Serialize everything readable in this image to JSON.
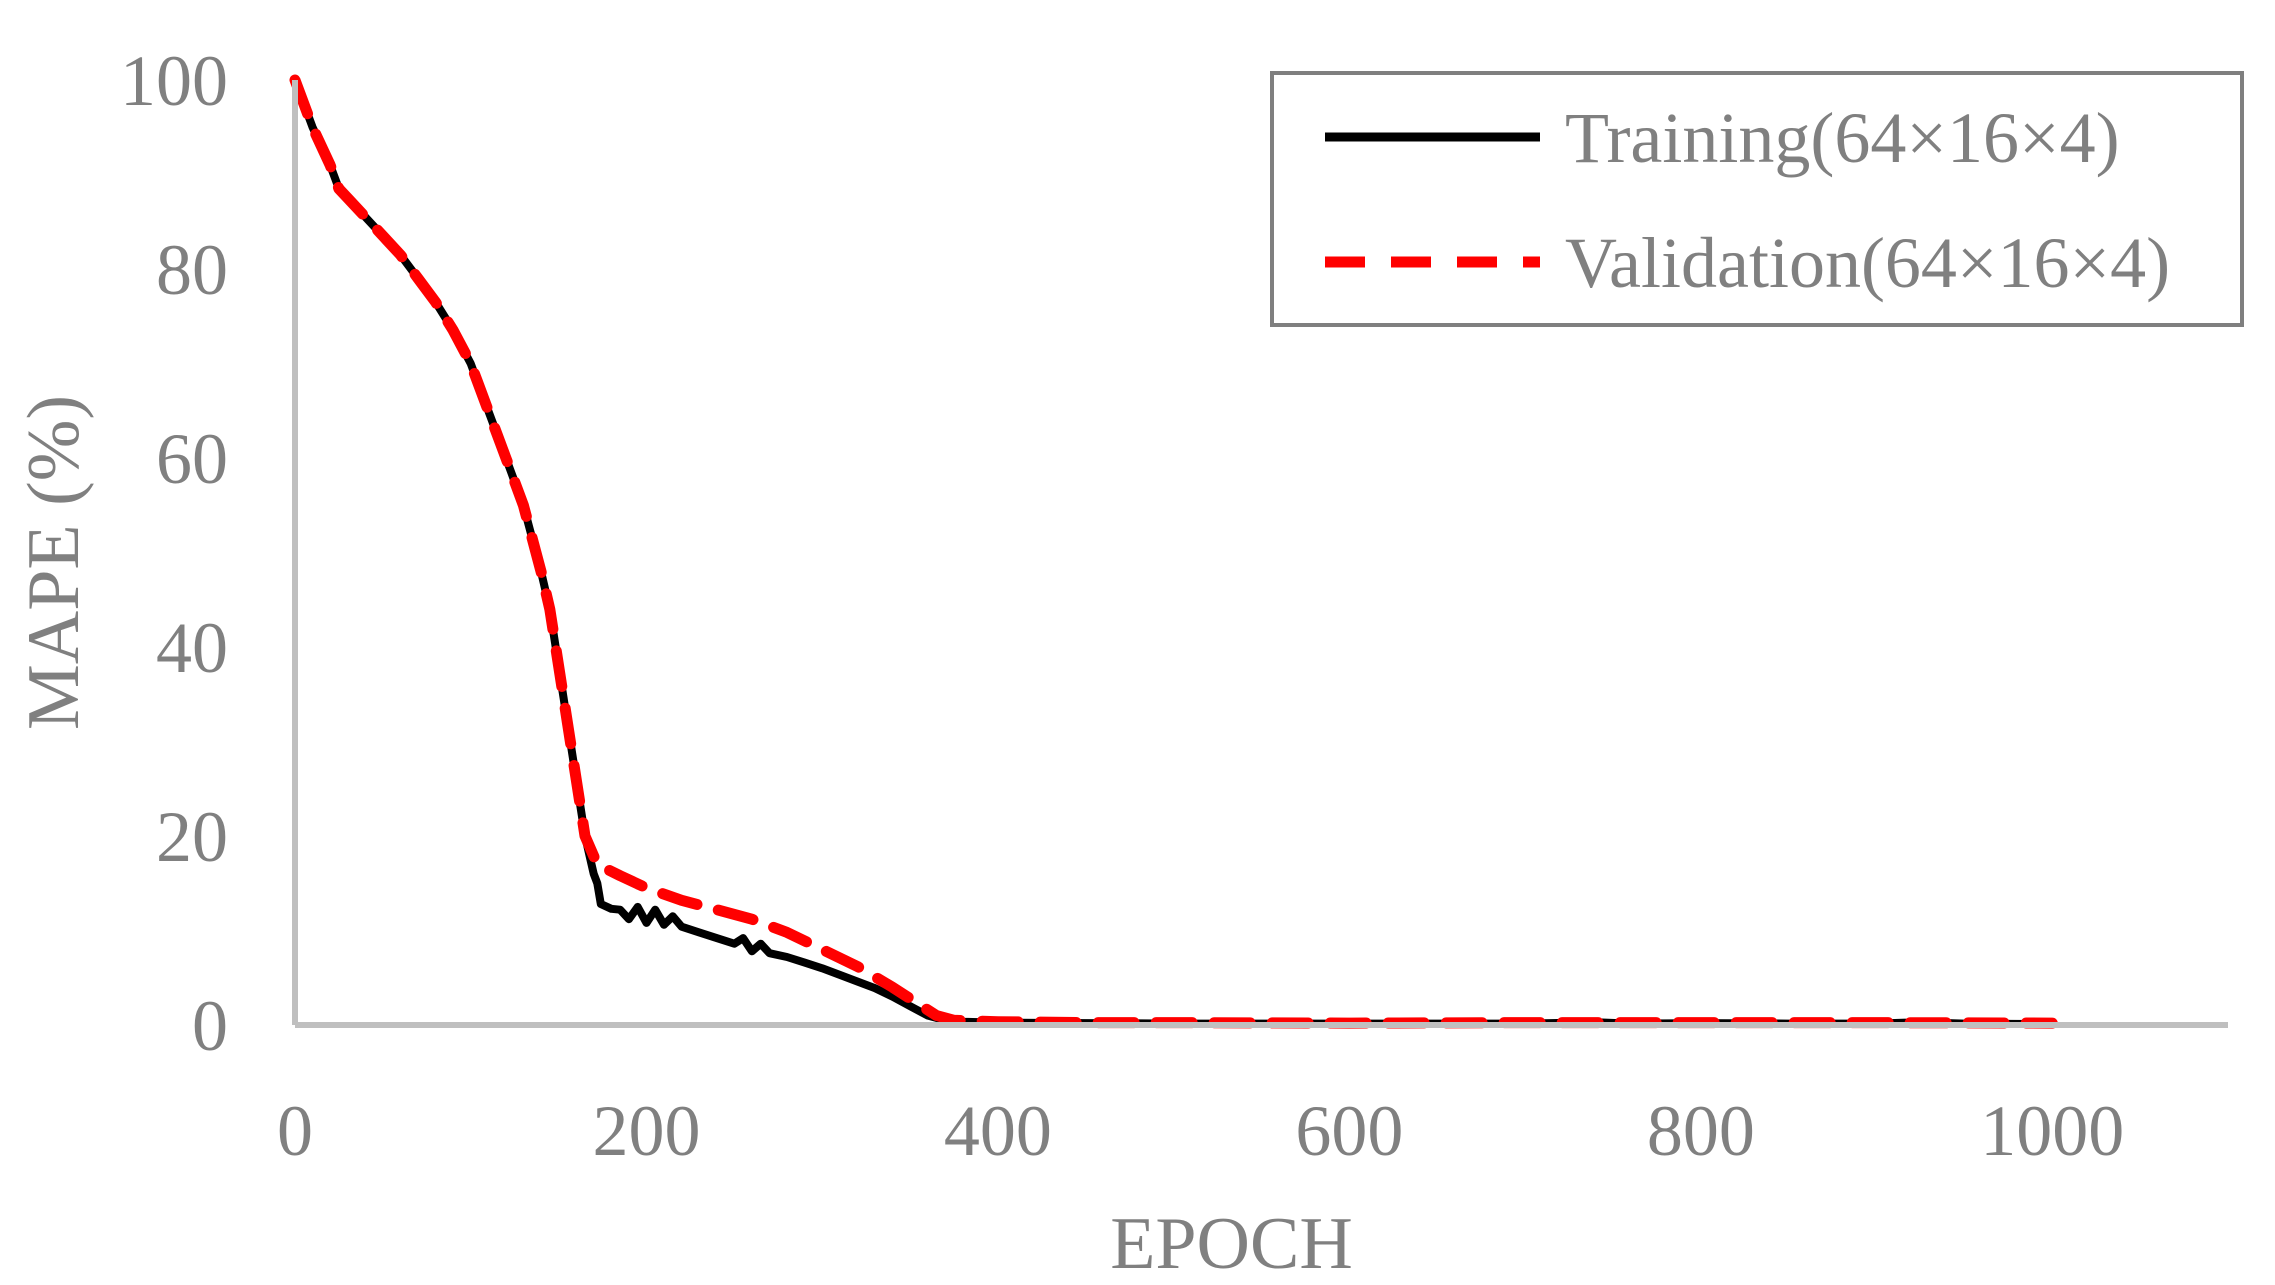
{
  "chart_data": {
    "type": "line",
    "title": "",
    "xlabel": "EPOCH",
    "ylabel": "MAPE (%)",
    "xlim": [
      0,
      1100
    ],
    "ylim": [
      0,
      100
    ],
    "x_ticks": [
      0,
      200,
      400,
      600,
      800,
      1000
    ],
    "y_ticks": [
      0,
      20,
      40,
      60,
      80,
      100
    ],
    "grid": false,
    "legend": "top-right",
    "series": [
      {
        "name": "Training(64×16×4)",
        "color": "#000000",
        "style": "solid",
        "points": [
          [
            0,
            100
          ],
          [
            10,
            95
          ],
          [
            20,
            91
          ],
          [
            25,
            88.5
          ],
          [
            30,
            87.5
          ],
          [
            40,
            85.5
          ],
          [
            50,
            83.5
          ],
          [
            60,
            81.5
          ],
          [
            70,
            79
          ],
          [
            80,
            76.5
          ],
          [
            90,
            73.5
          ],
          [
            100,
            70
          ],
          [
            110,
            65
          ],
          [
            120,
            60
          ],
          [
            130,
            55
          ],
          [
            140,
            48
          ],
          [
            145,
            44
          ],
          [
            150,
            38
          ],
          [
            155,
            32
          ],
          [
            160,
            26
          ],
          [
            165,
            20
          ],
          [
            170,
            16
          ],
          [
            172,
            15
          ],
          [
            174,
            12.8
          ],
          [
            180,
            12.3
          ],
          [
            185,
            12.2
          ],
          [
            190,
            11.2
          ],
          [
            195,
            12.5
          ],
          [
            200,
            10.8
          ],
          [
            205,
            12.2
          ],
          [
            210,
            10.6
          ],
          [
            215,
            11.5
          ],
          [
            220,
            10.4
          ],
          [
            230,
            9.8
          ],
          [
            240,
            9.2
          ],
          [
            250,
            8.6
          ],
          [
            255,
            9.2
          ],
          [
            260,
            7.8
          ],
          [
            265,
            8.6
          ],
          [
            270,
            7.6
          ],
          [
            280,
            7.2
          ],
          [
            290,
            6.6
          ],
          [
            300,
            6.0
          ],
          [
            310,
            5.3
          ],
          [
            320,
            4.6
          ],
          [
            330,
            3.9
          ],
          [
            340,
            3.0
          ],
          [
            350,
            2.0
          ],
          [
            360,
            1.0
          ],
          [
            370,
            0.5
          ],
          [
            380,
            0.35
          ],
          [
            400,
            0.25
          ],
          [
            450,
            0.2
          ],
          [
            500,
            0.15
          ],
          [
            600,
            0.15
          ],
          [
            700,
            0.15
          ],
          [
            740,
            0.3
          ],
          [
            760,
            0.15
          ],
          [
            800,
            0.2
          ],
          [
            850,
            0.15
          ],
          [
            900,
            0.15
          ],
          [
            925,
            0.3
          ],
          [
            950,
            0.15
          ],
          [
            1000,
            0.1
          ]
        ]
      },
      {
        "name": "Validation(64×16×4)",
        "color": "#ff0000",
        "style": "dashed",
        "points": [
          [
            0,
            100
          ],
          [
            10,
            95
          ],
          [
            20,
            91
          ],
          [
            25,
            88.5
          ],
          [
            30,
            87.5
          ],
          [
            40,
            85.5
          ],
          [
            50,
            83.5
          ],
          [
            60,
            81.5
          ],
          [
            70,
            79
          ],
          [
            80,
            76.5
          ],
          [
            90,
            73.5
          ],
          [
            100,
            70
          ],
          [
            110,
            65
          ],
          [
            120,
            60
          ],
          [
            130,
            55
          ],
          [
            140,
            48
          ],
          [
            145,
            44
          ],
          [
            150,
            38
          ],
          [
            155,
            32
          ],
          [
            160,
            26
          ],
          [
            165,
            20
          ],
          [
            172,
            17
          ],
          [
            185,
            15.8
          ],
          [
            200,
            14.5
          ],
          [
            220,
            13.2
          ],
          [
            240,
            12.2
          ],
          [
            260,
            11.2
          ],
          [
            280,
            9.8
          ],
          [
            300,
            8.0
          ],
          [
            320,
            6.2
          ],
          [
            340,
            4.0
          ],
          [
            355,
            2.2
          ],
          [
            365,
            1.0
          ],
          [
            375,
            0.5
          ],
          [
            400,
            0.35
          ],
          [
            450,
            0.25
          ],
          [
            500,
            0.25
          ],
          [
            600,
            0.2
          ],
          [
            700,
            0.25
          ],
          [
            800,
            0.25
          ],
          [
            900,
            0.25
          ],
          [
            1000,
            0.2
          ]
        ]
      }
    ]
  }
}
